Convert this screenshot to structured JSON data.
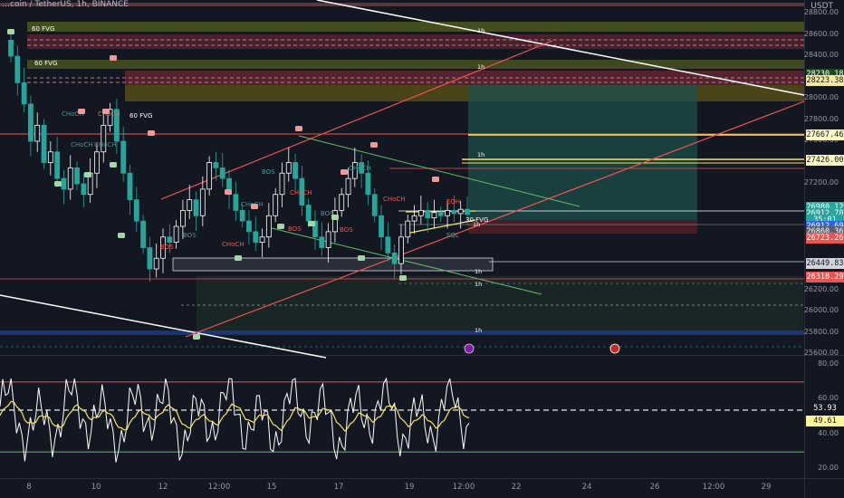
{
  "header": {
    "symbol": "BTCUSD",
    "exchange": "BINANCE",
    "text": "…coin / TetherUS, 1h, BINANCE",
    "currency": "USDT"
  },
  "price_axis": {
    "ticks": [
      "28800.00",
      "28600.00",
      "28400.00",
      "28000.00",
      "27800.00",
      "27600.00",
      "27200.00",
      "26200.00",
      "26000.00",
      "25800.00",
      "25600.00"
    ],
    "labels": [
      {
        "text": "28230.18",
        "y": 28230,
        "bg": "#1e4620",
        "fg": "#ffffff"
      },
      {
        "text": "28223.38",
        "y": 28170,
        "bg": "#f5e6a0",
        "fg": "#131722"
      },
      {
        "text": "27667.46",
        "y": 27660,
        "bg": "#fff9c4",
        "fg": "#131722"
      },
      {
        "text": "27426.00",
        "y": 27420,
        "bg": "#fff9c4",
        "fg": "#131722"
      },
      {
        "text": "26980.12",
        "y": 26975,
        "bg": "#26a69a",
        "fg": "#ffffff"
      },
      {
        "text": "26912.70",
        "y": 26915,
        "bg": "#26a69a",
        "fg": "#ffffff"
      },
      {
        "text": "35:01",
        "y": 26860,
        "bg": "#26a69a",
        "fg": "#ffffff"
      },
      {
        "text": "26912.69",
        "y": 26800,
        "bg": "#2962ff",
        "fg": "#ffffff"
      },
      {
        "text": "26860.36",
        "y": 26745,
        "bg": "#5d606b",
        "fg": "#ffffff"
      },
      {
        "text": "26723.26",
        "y": 26690,
        "bg": "#ef5350",
        "fg": "#ffffff"
      },
      {
        "text": "26449.83",
        "y": 26450,
        "bg": "#d1d4dc",
        "fg": "#131722"
      },
      {
        "text": "26318.29",
        "y": 26320,
        "bg": "#ef5350",
        "fg": "#ffffff"
      }
    ]
  },
  "rsi_axis": {
    "ticks": [
      "80.00",
      "60.00",
      "40.00",
      "20.00"
    ],
    "labels": [
      {
        "text": "53.93",
        "v": 53.9,
        "bg": "#131722",
        "fg": "#ffffff"
      },
      {
        "text": "49.61",
        "v": 49.6,
        "bg": "#fff59d",
        "fg": "#131722"
      }
    ]
  },
  "time_axis": [
    "8",
    "10",
    "12",
    "12:00",
    "15",
    "17",
    "19",
    "12:00",
    "22",
    "24",
    "26",
    "12:00",
    "29"
  ],
  "annotations": {
    "fvg": [
      "60 FVG",
      "60 FVG",
      "60 FVG",
      "30 FVG"
    ],
    "tf": "1h",
    "choch": "CHoCH",
    "bos": "BOS",
    "eqh": "EQH",
    "eql": "EQL"
  },
  "chart_data": {
    "type": "candlestick",
    "symbol": "BTCUSD",
    "timeframe": "1h",
    "exchange": "BINANCE",
    "price_range": [
      25600,
      28800
    ],
    "last_price": 26912.7,
    "close_series": [
      28400,
      28150,
      27950,
      27600,
      27750,
      27400,
      27500,
      27250,
      27150,
      27350,
      27200,
      27100,
      27300,
      27500,
      27750,
      27900,
      27600,
      27300,
      27050,
      26850,
      26600,
      26400,
      26500,
      26700,
      26650,
      26800,
      26950,
      27050,
      26900,
      27150,
      27400,
      27350,
      27250,
      27100,
      26950,
      26850,
      26750,
      26650,
      26700,
      26900,
      27100,
      27300,
      27400,
      27250,
      27000,
      26850,
      26700,
      26600,
      26750,
      26950,
      27100,
      27250,
      27400,
      27300,
      27100,
      26900,
      26700,
      26550,
      26450,
      26700,
      26850,
      26900,
      26950,
      26880,
      26930,
      26900,
      26950,
      26920,
      26960,
      26912
    ],
    "rsi": {
      "value": 53.93,
      "ma": 49.61,
      "levels": [
        70,
        30
      ],
      "range": [
        15,
        85
      ]
    }
  }
}
